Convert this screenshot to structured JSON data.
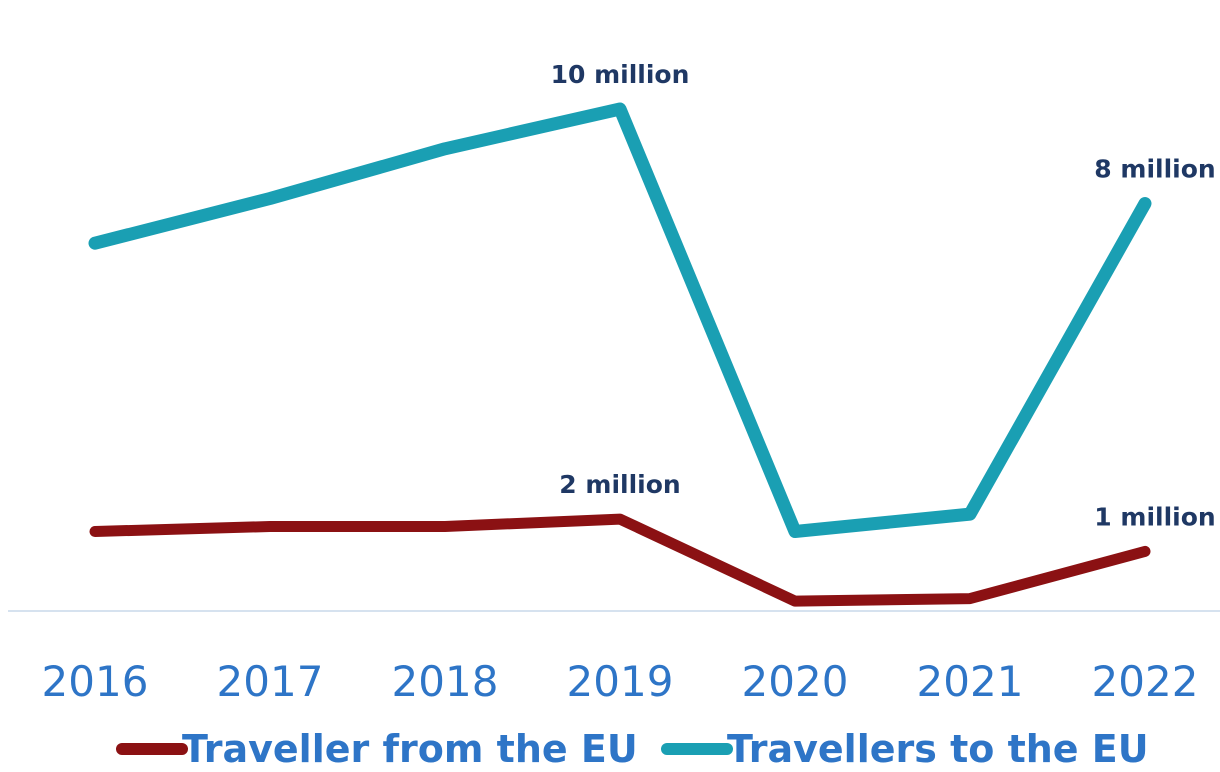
{
  "chart_data": {
    "type": "line",
    "title": "",
    "xlabel": "",
    "ylabel": "",
    "categories": [
      "2016",
      "2017",
      "2018",
      "2019",
      "2020",
      "2021",
      "2022"
    ],
    "ylim": [
      0,
      11
    ],
    "grid": false,
    "legend_position": "bottom",
    "series": [
      {
        "name": "Traveller from the EU",
        "color": "#8b1113",
        "values": [
          1.6,
          1.7,
          1.7,
          1.85,
          0.2,
          0.25,
          1.2
        ],
        "data_labels": [
          {
            "index": 3,
            "text": "2 million"
          },
          {
            "index": 6,
            "text": "1 million"
          }
        ]
      },
      {
        "name": "Travellers to the EU",
        "color": "#1a9fb3",
        "values": [
          7.4,
          8.3,
          9.3,
          10.1,
          1.6,
          1.95,
          8.2
        ],
        "data_labels": [
          {
            "index": 3,
            "text": "10 million"
          },
          {
            "index": 6,
            "text": "8 million"
          }
        ]
      }
    ],
    "tick_color": "#2e75c7",
    "label_color": "#1f3864",
    "axis_color": "#c9d9ea"
  }
}
